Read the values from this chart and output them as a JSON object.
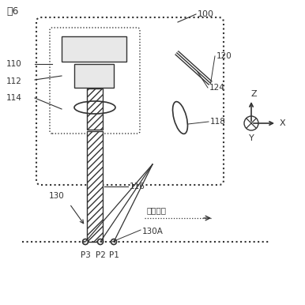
{
  "fig_label": "図6",
  "bg_color": "#ffffff",
  "line_color": "#333333",
  "label_100": "100",
  "label_110": "110",
  "label_112": "112",
  "label_114": "114",
  "label_116": "116",
  "label_118": "118",
  "label_120": "120",
  "label_124": "124",
  "label_130": "130",
  "label_130A": "130A",
  "label_P1": "P1",
  "label_P2": "P2",
  "label_P3": "P3",
  "label_Z": "Z",
  "label_X": "X",
  "label_Y": "Y",
  "label_direction": "走査方向"
}
